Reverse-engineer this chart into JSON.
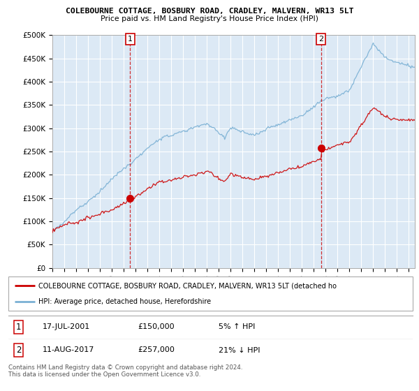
{
  "title1": "COLEBOURNE COTTAGE, BOSBURY ROAD, CRADLEY, MALVERN, WR13 5LT",
  "title2": "Price paid vs. HM Land Registry's House Price Index (HPI)",
  "ylabel_ticks": [
    "£0",
    "£50K",
    "£100K",
    "£150K",
    "£200K",
    "£250K",
    "£300K",
    "£350K",
    "£400K",
    "£450K",
    "£500K"
  ],
  "ytick_values": [
    0,
    50000,
    100000,
    150000,
    200000,
    250000,
    300000,
    350000,
    400000,
    450000,
    500000
  ],
  "ylim": [
    0,
    500000
  ],
  "xlim_start": 1995,
  "xlim_end": 2025.5,
  "sale1_x": 2001.54,
  "sale1_y": 150000,
  "sale2_x": 2017.61,
  "sale2_y": 257000,
  "legend_line1": "COLEBOURNE COTTAGE, BOSBURY ROAD, CRADLEY, MALVERN, WR13 5LT (detached ho",
  "legend_line2": "HPI: Average price, detached house, Herefordshire",
  "ann1_label": "1",
  "ann1_date": "17-JUL-2001",
  "ann1_price": "£150,000",
  "ann1_hpi": "5% ↑ HPI",
  "ann2_label": "2",
  "ann2_date": "11-AUG-2017",
  "ann2_price": "£257,000",
  "ann2_hpi": "21% ↓ HPI",
  "footer": "Contains HM Land Registry data © Crown copyright and database right 2024.\nThis data is licensed under the Open Government Licence v3.0.",
  "red": "#cc0000",
  "blue": "#7ab0d4",
  "bg_fill": "#dce9f5",
  "grid_color": "#ffffff",
  "box_border": "#cc0000"
}
